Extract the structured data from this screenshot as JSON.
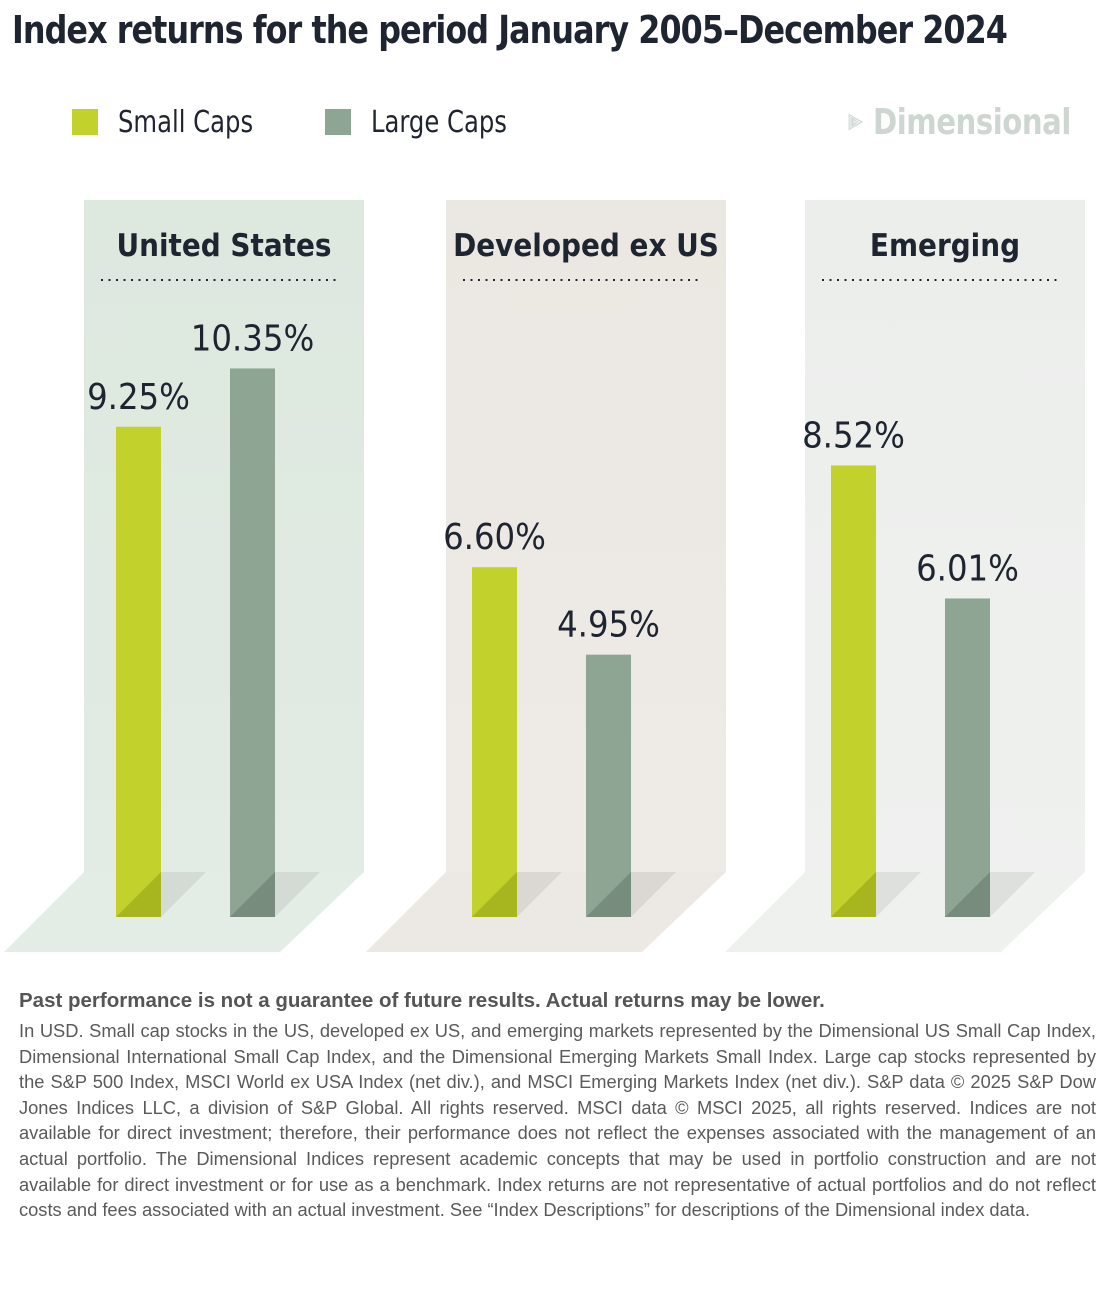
{
  "title": "Index returns for the period January 2005–December 2024",
  "legend": [
    {
      "label": "Small Caps",
      "color": "#c2d12b"
    },
    {
      "label": "Large Caps",
      "color": "#8ea594"
    }
  ],
  "logo": {
    "text": "Dimensional",
    "icon": "dimensional-logo-icon"
  },
  "colors": {
    "small_cap_bar": "#c2d12b",
    "large_cap_bar": "#8ea594",
    "panel_us": "#dde8df",
    "panel_dev": "#ebe7e2",
    "panel_em": "#eceeec",
    "text": "#1e2430"
  },
  "chart_data": {
    "type": "bar",
    "categories": [
      "United States",
      "Developed ex US",
      "Emerging"
    ],
    "series": [
      {
        "name": "Small Caps",
        "values": [
          9.25,
          6.6,
          8.52
        ],
        "labels": [
          "9.25%",
          "6.60%",
          "8.52%"
        ]
      },
      {
        "name": "Large Caps",
        "values": [
          10.35,
          4.95,
          6.01
        ],
        "labels": [
          "10.35%",
          "4.95%",
          "6.01%"
        ]
      }
    ],
    "title": "Index returns for the period January 2005–December 2024",
    "xlabel": "",
    "ylabel": "",
    "unit": "%",
    "ylim": [
      0,
      11
    ],
    "grid": false,
    "legend_position": "top-left"
  },
  "footnote": {
    "bold": "Past performance is not a guarantee of future results. Actual returns may be lower.",
    "body": "In USD. Small cap stocks in the US, developed ex US, and emerging markets represented by the Dimensional US Small Cap Index, Dimensional International Small Cap Index, and the Dimensional Emerging Markets Small Index. Large cap stocks represented by the S&P 500 Index, MSCI World ex USA Index (net div.), and MSCI Emerging Markets Index (net div.).  S&P data © 2025 S&P Dow Jones Indices LLC, a division of S&P Global. All rights reserved. MSCI data © MSCI 2025, all rights reserved. Indices are not available for direct investment; therefore, their performance does not reflect the expenses associated with the management of an actual portfolio. The Dimensional Indices represent academic concepts that may be used in portfolio construction and are not available for direct investment or for use as a benchmark. Index returns are not representative of actual portfolios and do not reflect costs and fees associated with an actual investment. See “Index Descriptions” for descriptions of the Dimensional index data."
  }
}
